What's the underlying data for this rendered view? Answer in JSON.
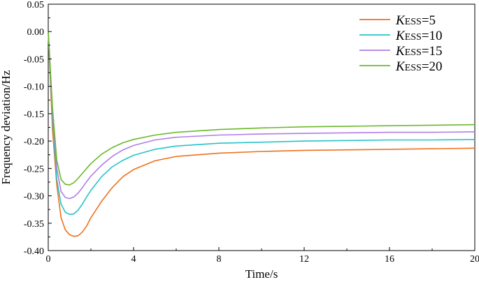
{
  "chart_data": {
    "type": "line",
    "xlabel": "Time/s",
    "ylabel": "Frequency deviation/Hz",
    "xlim": [
      0,
      20
    ],
    "ylim": [
      -0.4,
      0.05
    ],
    "xticks": [
      0,
      4,
      8,
      12,
      16,
      20
    ],
    "xtick_labels": [
      "0",
      "4",
      "8",
      "12",
      "16",
      "20"
    ],
    "yticks": [
      0.05,
      0.0,
      -0.05,
      -0.1,
      -0.15,
      -0.2,
      -0.25,
      -0.3,
      -0.35,
      -0.4
    ],
    "ytick_labels": [
      "0.05",
      "0.00",
      "-0.05",
      "-0.10",
      "-0.15",
      "-0.20",
      "-0.25",
      "-0.30",
      "-0.35",
      "-0.40"
    ],
    "grid": false,
    "legend_position": "top-right",
    "series": [
      {
        "name_main": "K",
        "name_sub": "ESS",
        "name_value": "=5",
        "color": "#f0701e",
        "x": [
          0,
          0.2,
          0.4,
          0.6,
          0.8,
          1.0,
          1.2,
          1.4,
          1.6,
          1.8,
          2.0,
          2.5,
          3,
          3.5,
          4,
          5,
          6,
          8,
          10,
          12,
          14,
          16,
          18,
          20
        ],
        "y": [
          0.0,
          -0.18,
          -0.28,
          -0.34,
          -0.362,
          -0.371,
          -0.374,
          -0.373,
          -0.366,
          -0.355,
          -0.34,
          -0.31,
          -0.285,
          -0.265,
          -0.252,
          -0.236,
          -0.228,
          -0.222,
          -0.219,
          -0.217,
          -0.216,
          -0.215,
          -0.214,
          -0.213
        ]
      },
      {
        "name_main": "K",
        "name_sub": "ESS",
        "name_value": "=10",
        "color": "#26c4c8",
        "x": [
          0,
          0.2,
          0.4,
          0.6,
          0.8,
          1.0,
          1.2,
          1.4,
          1.6,
          1.8,
          2.0,
          2.5,
          3,
          3.5,
          4,
          5,
          6,
          8,
          10,
          12,
          14,
          16,
          18,
          20
        ],
        "y": [
          0.0,
          -0.16,
          -0.27,
          -0.315,
          -0.33,
          -0.334,
          -0.333,
          -0.326,
          -0.315,
          -0.302,
          -0.29,
          -0.265,
          -0.247,
          -0.235,
          -0.226,
          -0.215,
          -0.209,
          -0.204,
          -0.202,
          -0.2,
          -0.199,
          -0.198,
          -0.198,
          -0.197
        ]
      },
      {
        "name_main": "K",
        "name_sub": "ESS",
        "name_value": "=15",
        "color": "#b07ee6",
        "x": [
          0,
          0.2,
          0.4,
          0.6,
          0.8,
          1.0,
          1.2,
          1.4,
          1.6,
          1.8,
          2.0,
          2.5,
          3,
          3.5,
          4,
          5,
          6,
          8,
          10,
          12,
          14,
          16,
          18,
          20
        ],
        "y": [
          0.0,
          -0.15,
          -0.25,
          -0.292,
          -0.303,
          -0.305,
          -0.302,
          -0.295,
          -0.285,
          -0.274,
          -0.264,
          -0.244,
          -0.228,
          -0.216,
          -0.208,
          -0.198,
          -0.193,
          -0.189,
          -0.187,
          -0.186,
          -0.185,
          -0.184,
          -0.184,
          -0.183
        ]
      },
      {
        "name_main": "K",
        "name_sub": "ESS",
        "name_value": "=20",
        "color": "#6bb82b",
        "x": [
          0,
          0.2,
          0.4,
          0.6,
          0.8,
          1.0,
          1.2,
          1.4,
          1.6,
          1.8,
          2.0,
          2.5,
          3,
          3.5,
          4,
          5,
          6,
          8,
          10,
          12,
          14,
          16,
          18,
          20
        ],
        "y": [
          0.0,
          -0.14,
          -0.235,
          -0.27,
          -0.279,
          -0.28,
          -0.276,
          -0.268,
          -0.259,
          -0.25,
          -0.241,
          -0.224,
          -0.212,
          -0.203,
          -0.197,
          -0.189,
          -0.184,
          -0.179,
          -0.176,
          -0.174,
          -0.173,
          -0.172,
          -0.171,
          -0.17
        ]
      }
    ]
  }
}
